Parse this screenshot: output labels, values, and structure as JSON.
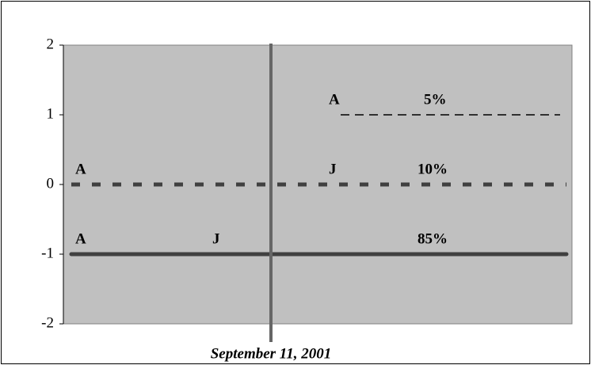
{
  "chart_data": {
    "type": "line",
    "ylim": [
      -2,
      2
    ],
    "yticks": [
      -2,
      -1,
      0,
      1,
      2
    ],
    "background": "#c0c0c0",
    "series": [
      {
        "name": "5%",
        "values": [
          1,
          1
        ],
        "markers": [
          "A"
        ],
        "color": "#000000",
        "style": "thin-dash"
      },
      {
        "name": "10%",
        "values": [
          0,
          0
        ],
        "markers": [
          "A",
          "J"
        ],
        "color": "#404040",
        "style": "thick-dash"
      },
      {
        "name": "85%",
        "values": [
          -1,
          -1
        ],
        "markers": [
          "A",
          "J"
        ],
        "color": "#404040",
        "style": "solid"
      }
    ],
    "event": {
      "label": "September 11, 2001",
      "color": "#666666"
    }
  }
}
